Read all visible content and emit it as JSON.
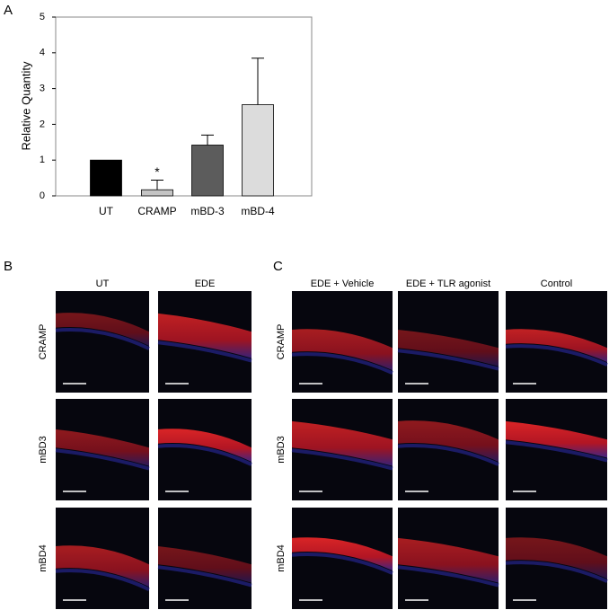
{
  "chart_data": {
    "type": "bar",
    "ylabel": "Relative Quantity",
    "categories": [
      "UT",
      "CRAMP",
      "mBD-3",
      "mBD-4"
    ],
    "values": [
      1,
      0.17,
      1.42,
      2.55
    ],
    "errors": [
      null,
      0.27,
      0.28,
      1.3
    ],
    "colors": [
      "#000000",
      "#c4c4c4",
      "#5c5c5c",
      "#dcdcdc"
    ],
    "annotation": "*",
    "ylim": [
      0,
      5
    ],
    "yticks": [
      0,
      1,
      2,
      3,
      4,
      5
    ]
  },
  "panels": [
    {
      "label": "A"
    },
    {
      "label": "B",
      "columns": [
        "UT",
        "EDE"
      ],
      "rows": [
        "CRAMP",
        "mBD3",
        "mBD4"
      ]
    },
    {
      "label": "C",
      "columns": [
        "EDE + Vehicle",
        "EDE + TLR agonist",
        "Control"
      ],
      "rows": [
        "CRAMP",
        "mBD3",
        "mBD4"
      ]
    }
  ]
}
